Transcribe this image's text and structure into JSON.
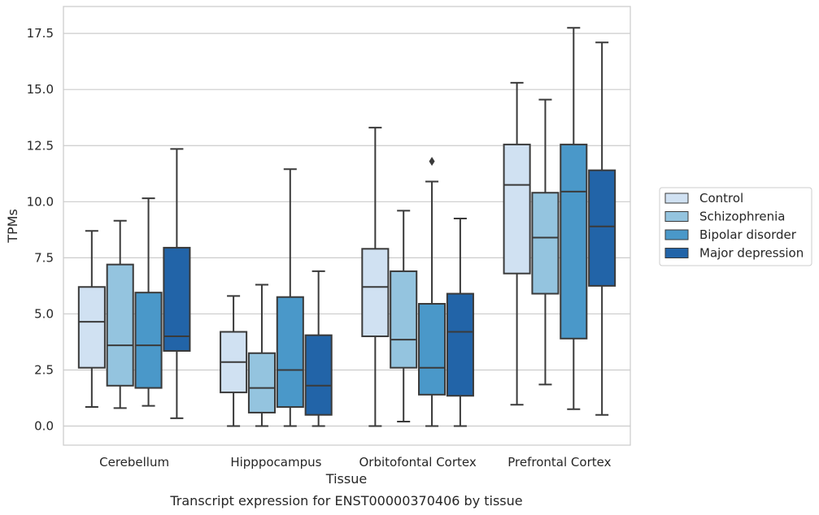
{
  "chart_data": {
    "type": "box",
    "caption": "Transcript expression for ENST00000370406 by tissue",
    "xlabel": "Tissue",
    "ylabel": "TPMs",
    "ylim": [
      -0.85,
      18.7
    ],
    "yticks": [
      "0.0",
      "2.5",
      "5.0",
      "7.5",
      "10.0",
      "12.5",
      "15.0",
      "17.5"
    ],
    "categories": [
      "Cerebellum",
      "Hipppocampus",
      "Orbitofontal Cortex",
      "Prefrontal Cortex"
    ],
    "grid": true,
    "legend_position": "right",
    "series": [
      {
        "name": "Control",
        "color": "#d0e1f2",
        "boxes": [
          {
            "whisker_low": 0.85,
            "q1": 2.6,
            "median": 4.65,
            "q3": 6.2,
            "whisker_high": 8.7,
            "outliers": []
          },
          {
            "whisker_low": 0.0,
            "q1": 1.5,
            "median": 2.85,
            "q3": 4.2,
            "whisker_high": 5.8,
            "outliers": []
          },
          {
            "whisker_low": 0.0,
            "q1": 4.0,
            "median": 6.2,
            "q3": 7.9,
            "whisker_high": 13.3,
            "outliers": []
          },
          {
            "whisker_low": 0.95,
            "q1": 6.8,
            "median": 10.75,
            "q3": 12.55,
            "whisker_high": 15.3,
            "outliers": []
          }
        ]
      },
      {
        "name": "Schizophrenia",
        "color": "#94c4df",
        "boxes": [
          {
            "whisker_low": 0.8,
            "q1": 1.8,
            "median": 3.6,
            "q3": 7.2,
            "whisker_high": 9.15,
            "outliers": []
          },
          {
            "whisker_low": 0.0,
            "q1": 0.6,
            "median": 1.7,
            "q3": 3.25,
            "whisker_high": 6.3,
            "outliers": []
          },
          {
            "whisker_low": 0.2,
            "q1": 2.6,
            "median": 3.85,
            "q3": 6.9,
            "whisker_high": 9.6,
            "outliers": []
          },
          {
            "whisker_low": 1.85,
            "q1": 5.9,
            "median": 8.4,
            "q3": 10.4,
            "whisker_high": 14.55,
            "outliers": []
          }
        ]
      },
      {
        "name": "Bipolar disorder",
        "color": "#4a98c9",
        "boxes": [
          {
            "whisker_low": 0.9,
            "q1": 1.7,
            "median": 3.6,
            "q3": 5.95,
            "whisker_high": 10.15,
            "outliers": []
          },
          {
            "whisker_low": 0.0,
            "q1": 0.85,
            "median": 2.5,
            "q3": 5.75,
            "whisker_high": 11.45,
            "outliers": []
          },
          {
            "whisker_low": 0.0,
            "q1": 1.4,
            "median": 2.6,
            "q3": 5.45,
            "whisker_high": 10.9,
            "outliers": [
              11.8
            ]
          },
          {
            "whisker_low": 0.75,
            "q1": 3.9,
            "median": 10.45,
            "q3": 12.55,
            "whisker_high": 17.75,
            "outliers": []
          }
        ]
      },
      {
        "name": "Major depression",
        "color": "#2264a8",
        "boxes": [
          {
            "whisker_low": 0.35,
            "q1": 3.35,
            "median": 4.0,
            "q3": 7.95,
            "whisker_high": 12.35,
            "outliers": []
          },
          {
            "whisker_low": 0.0,
            "q1": 0.5,
            "median": 1.8,
            "q3": 4.05,
            "whisker_high": 6.9,
            "outliers": []
          },
          {
            "whisker_low": 0.0,
            "q1": 1.35,
            "median": 4.2,
            "q3": 5.9,
            "whisker_high": 9.25,
            "outliers": []
          },
          {
            "whisker_low": 0.5,
            "q1": 6.25,
            "median": 8.9,
            "q3": 11.4,
            "whisker_high": 17.1,
            "outliers": []
          }
        ]
      }
    ]
  }
}
